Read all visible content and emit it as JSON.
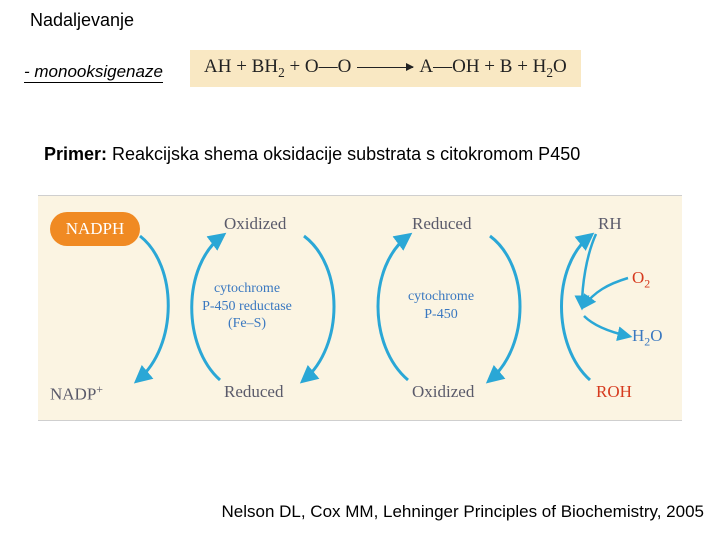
{
  "title": "Nadaljevanje",
  "subtitle": "- monooksigenaze",
  "equation": {
    "lhs": "AH + BH₂ + O—O",
    "rhs": "A—OH + B + H₂O",
    "bg_color": "#f9e8c3"
  },
  "primer_prefix": "Primer: ",
  "primer_text": "Reakcijska shema oksidacije substrata s citokromom P450",
  "diagram": {
    "bg_color": "#fbf4e2",
    "arrow_color": "#2aa7d6",
    "label_color": "#62626c",
    "enzyme_color": "#3a78c0",
    "nadph": {
      "text": "NADPH",
      "fill": "#f08a23"
    },
    "nadp": "NADP⁺",
    "ox_a": "Oxidized",
    "red_a": "Reduced",
    "red_b": "Reduced",
    "ox_b": "Oxidized",
    "enzyme1": "cytochrome\nP-450 reductase\n(Fe–S)",
    "enzyme2": "cytochrome\nP-450",
    "right": {
      "rh": {
        "text": "RH",
        "color": "#5b5b6b"
      },
      "o2": {
        "text": "O₂",
        "color": "#d6391d"
      },
      "h2o": {
        "text": "H₂O",
        "color": "#3a78c0"
      },
      "roh": {
        "text": "ROH",
        "color": "#d6391d"
      }
    }
  },
  "citation": "Nelson DL, Cox MM, Lehninger Principles of Biochemistry, 2005"
}
